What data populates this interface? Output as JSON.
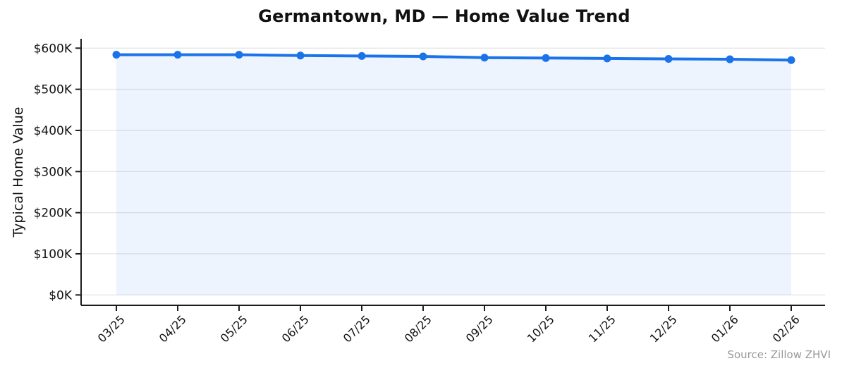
{
  "chart_data": {
    "type": "line",
    "title": "Germantown, MD — Home Value Trend",
    "xlabel": "",
    "ylabel": "Typical Home Value",
    "source_label": "Source: Zillow ZHVI",
    "categories": [
      "03/25",
      "04/25",
      "05/25",
      "06/25",
      "07/25",
      "08/25",
      "09/25",
      "10/25",
      "11/25",
      "12/25",
      "01/26",
      "02/26"
    ],
    "series": [
      {
        "name": "Typical Home Value ($)",
        "values": [
          584000,
          584000,
          584000,
          582000,
          581000,
          580000,
          577000,
          576000,
          575000,
          574000,
          573000,
          571000
        ]
      }
    ],
    "yticks": [
      0,
      100000,
      200000,
      300000,
      400000,
      500000,
      600000
    ],
    "ytick_labels": [
      "$0K",
      "$100K",
      "$200K",
      "$300K",
      "$400K",
      "$500K",
      "$600K"
    ],
    "ylim": [
      0,
      620000
    ],
    "grid": "horizontal",
    "legend_position": "none",
    "marker": "circle",
    "area_fill": true,
    "colors": {
      "line": "#1a73e8",
      "fill_opacity": "0.08",
      "grid": "#e6e6e6",
      "axis": "#1c1c1c",
      "tick_text": "#111111",
      "title_text": "#111111",
      "source_text": "#999999"
    }
  }
}
